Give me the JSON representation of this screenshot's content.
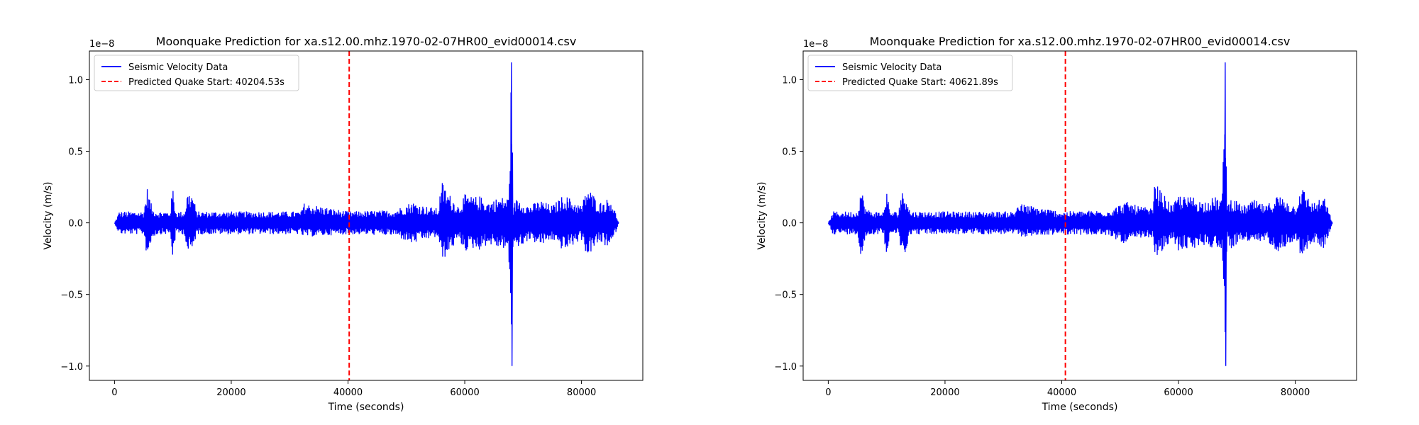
{
  "chart_data": [
    {
      "type": "line",
      "title": "Moonquake Prediction for xa.s12.00.mhz.1970-02-07HR00_evid00014.csv",
      "xlabel": "Time (seconds)",
      "ylabel": "Velocity (m/s)",
      "y_offset_label": "1e−8",
      "xlim": [
        -4300,
        90500
      ],
      "ylim": [
        -1.1,
        1.2
      ],
      "xticks": [
        0,
        20000,
        40000,
        60000,
        80000
      ],
      "xtick_labels": [
        "0",
        "20000",
        "40000",
        "60000",
        "80000"
      ],
      "yticks": [
        -1.0,
        -0.5,
        0.0,
        0.5,
        1.0
      ],
      "ytick_labels": [
        "−1.0",
        "−0.5",
        "0.0",
        "0.5",
        "1.0"
      ],
      "grid": false,
      "legend_position": "top-left",
      "series": [
        {
          "name": "Seismic Velocity Data",
          "color": "#0000ff",
          "style": "solid",
          "x": [
            0,
            800,
            5000,
            5600,
            6500,
            7500,
            9500,
            10000,
            10500,
            12000,
            12500,
            13500,
            14000,
            20000,
            32000,
            32300,
            40000,
            48000,
            51000,
            53000,
            55500,
            56000,
            57000,
            58000,
            59000,
            60000,
            61500,
            62500,
            64000,
            66000,
            67500,
            68000,
            68300,
            69000,
            71000,
            73000,
            75000,
            77000,
            80000,
            81000,
            83000,
            85000,
            86400
          ],
          "y_max": [
            0.0,
            0.08,
            0.08,
            0.25,
            0.1,
            0.08,
            0.08,
            0.26,
            0.08,
            0.08,
            0.22,
            0.2,
            0.08,
            0.08,
            0.08,
            0.14,
            0.08,
            0.09,
            0.15,
            0.12,
            0.1,
            0.3,
            0.22,
            0.17,
            0.12,
            0.2,
            0.18,
            0.19,
            0.15,
            0.18,
            0.18,
            1.12,
            0.12,
            0.18,
            0.12,
            0.16,
            0.12,
            0.2,
            0.12,
            0.26,
            0.14,
            0.18,
            0.0
          ],
          "y_min": [
            0.0,
            -0.08,
            -0.08,
            -0.25,
            -0.1,
            -0.08,
            -0.08,
            -0.26,
            -0.08,
            -0.08,
            -0.22,
            -0.2,
            -0.08,
            -0.08,
            -0.08,
            -0.1,
            -0.08,
            -0.09,
            -0.15,
            -0.12,
            -0.1,
            -0.28,
            -0.22,
            -0.17,
            -0.12,
            -0.2,
            -0.18,
            -0.19,
            -0.15,
            -0.18,
            -0.18,
            -1.0,
            -0.12,
            -0.18,
            -0.12,
            -0.16,
            -0.12,
            -0.2,
            -0.12,
            -0.24,
            -0.14,
            -0.18,
            0.0
          ]
        },
        {
          "name": "Predicted Quake Start: 40204.53s",
          "color": "#ff0000",
          "style": "dashed",
          "x_value": 40204.53
        }
      ]
    },
    {
      "type": "line",
      "title": "Moonquake Prediction for xa.s12.00.mhz.1970-02-07HR00_evid00014.csv",
      "xlabel": "Time (seconds)",
      "ylabel": "Velocity (m/s)",
      "y_offset_label": "1e−8",
      "xlim": [
        -4300,
        90500
      ],
      "ylim": [
        -1.1,
        1.2
      ],
      "xticks": [
        0,
        20000,
        40000,
        60000,
        80000
      ],
      "xtick_labels": [
        "0",
        "20000",
        "40000",
        "60000",
        "80000"
      ],
      "yticks": [
        -1.0,
        -0.5,
        0.0,
        0.5,
        1.0
      ],
      "ytick_labels": [
        "−1.0",
        "−0.5",
        "0.0",
        "0.5",
        "1.0"
      ],
      "grid": false,
      "legend_position": "top-left",
      "series": [
        {
          "name": "Seismic Velocity Data",
          "color": "#0000ff",
          "style": "solid",
          "x": [
            0,
            800,
            5000,
            5600,
            6500,
            7500,
            9500,
            10000,
            10500,
            12000,
            12500,
            13500,
            14000,
            20000,
            32000,
            32300,
            40000,
            48000,
            51000,
            53000,
            55500,
            56000,
            57000,
            58000,
            59000,
            60000,
            61500,
            62500,
            64000,
            66000,
            67500,
            68000,
            68300,
            69000,
            71000,
            73000,
            75000,
            77000,
            80000,
            81000,
            83000,
            85000,
            86400
          ],
          "y_max": [
            0.0,
            0.08,
            0.08,
            0.25,
            0.1,
            0.08,
            0.08,
            0.26,
            0.08,
            0.08,
            0.22,
            0.2,
            0.08,
            0.08,
            0.08,
            0.14,
            0.08,
            0.09,
            0.15,
            0.12,
            0.1,
            0.3,
            0.22,
            0.17,
            0.12,
            0.2,
            0.18,
            0.19,
            0.15,
            0.18,
            0.18,
            1.12,
            0.12,
            0.18,
            0.12,
            0.16,
            0.12,
            0.2,
            0.12,
            0.26,
            0.14,
            0.18,
            0.0
          ],
          "y_min": [
            0.0,
            -0.08,
            -0.08,
            -0.25,
            -0.1,
            -0.08,
            -0.08,
            -0.26,
            -0.08,
            -0.08,
            -0.22,
            -0.2,
            -0.08,
            -0.08,
            -0.08,
            -0.1,
            -0.08,
            -0.09,
            -0.15,
            -0.12,
            -0.1,
            -0.28,
            -0.22,
            -0.17,
            -0.12,
            -0.2,
            -0.18,
            -0.19,
            -0.15,
            -0.18,
            -0.18,
            -1.0,
            -0.12,
            -0.18,
            -0.12,
            -0.16,
            -0.12,
            -0.2,
            -0.12,
            -0.24,
            -0.14,
            -0.18,
            0.0
          ]
        },
        {
          "name": "Predicted Quake Start: 40621.89s",
          "color": "#ff0000",
          "style": "dashed",
          "x_value": 40621.89
        }
      ]
    }
  ]
}
